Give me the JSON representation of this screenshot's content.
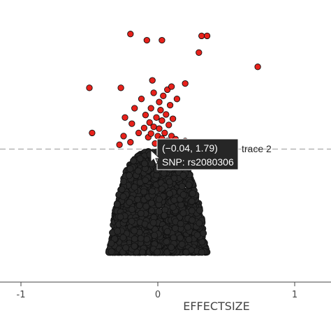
{
  "chart_data": {
    "type": "scatter",
    "title": "",
    "xlabel": "EFFECTSIZE",
    "ylabel": "",
    "xlim": [
      -1.0,
      1.0
    ],
    "ylim": [
      0.0,
      4.2
    ],
    "x_ticks": [
      -1,
      0,
      1
    ],
    "x_tick_labels": [
      "-1",
      "0",
      "1"
    ],
    "grid": false,
    "legend": "none",
    "threshold_line": {
      "y": 1.79,
      "style": "dashed",
      "color": "#999999"
    },
    "series": [
      {
        "color": "#262626",
        "points_approx": 6000,
        "description_points": [
          [
            -0.36,
            0.12
          ],
          [
            -0.34,
            0.3
          ],
          [
            -0.33,
            0.5
          ],
          [
            -0.32,
            0.7
          ],
          [
            -0.3,
            0.9
          ],
          [
            -0.28,
            1.1
          ],
          [
            -0.26,
            1.3
          ],
          [
            -0.22,
            1.5
          ],
          [
            -0.16,
            1.65
          ],
          [
            -0.1,
            1.75
          ],
          [
            0.36,
            0.12
          ],
          [
            0.34,
            0.3
          ],
          [
            0.33,
            0.5
          ],
          [
            0.32,
            0.7
          ],
          [
            0.3,
            0.9
          ],
          [
            0.27,
            1.1
          ],
          [
            0.25,
            1.3
          ],
          [
            0.21,
            1.5
          ],
          [
            0.15,
            1.65
          ],
          [
            0.1,
            1.75
          ]
        ]
      },
      {
        "color": "#e8211b",
        "points": [
          [
            -0.5,
            2.78
          ],
          [
            -0.48,
            2.05
          ],
          [
            -0.27,
            2.78
          ],
          [
            -0.24,
            2.3
          ],
          [
            -0.2,
            1.9
          ],
          [
            -0.19,
            2.2
          ],
          [
            -0.17,
            2.45
          ],
          [
            -0.14,
            2.05
          ],
          [
            -0.12,
            2.6
          ],
          [
            -0.1,
            2.13
          ],
          [
            -0.09,
            2.34
          ],
          [
            -0.07,
            1.98
          ],
          [
            -0.06,
            2.22
          ],
          [
            -0.05,
            2.45
          ],
          [
            -0.05,
            2.04
          ],
          [
            -0.04,
            2.9
          ],
          [
            -0.03,
            2.7
          ],
          [
            -0.03,
            2.15
          ],
          [
            -0.02,
            1.88
          ],
          [
            -0.01,
            2.3
          ],
          [
            0.0,
            2.0
          ],
          [
            0.01,
            2.55
          ],
          [
            0.01,
            2.12
          ],
          [
            0.02,
            2.42
          ],
          [
            0.03,
            1.96
          ],
          [
            0.03,
            2.25
          ],
          [
            0.04,
            2.65
          ],
          [
            0.05,
            2.05
          ],
          [
            0.06,
            2.35
          ],
          [
            0.07,
            2.75
          ],
          [
            0.07,
            1.92
          ],
          [
            0.08,
            2.18
          ],
          [
            0.09,
            2.5
          ],
          [
            0.1,
            2.0
          ],
          [
            0.11,
            2.28
          ],
          [
            0.13,
            1.95
          ],
          [
            0.14,
            2.6
          ],
          [
            0.16,
            1.9
          ],
          [
            0.2,
            2.85
          ],
          [
            0.2,
            1.92
          ],
          [
            0.03,
            3.55
          ],
          [
            0.1,
            2.8
          ],
          [
            0.3,
            3.35
          ],
          [
            0.32,
            3.62
          ],
          [
            0.36,
            3.62
          ],
          [
            -0.2,
            3.65
          ],
          [
            -0.08,
            3.55
          ],
          [
            0.73,
            3.12
          ],
          [
            -0.28,
            1.86
          ],
          [
            -0.25,
            2.0
          ]
        ]
      }
    ],
    "hover": {
      "value_label": "(−0.04, 1.79)",
      "snp_label": "SNP: rs2080306",
      "trace_label": "trace 2",
      "x": -0.04,
      "y": 1.79
    }
  }
}
